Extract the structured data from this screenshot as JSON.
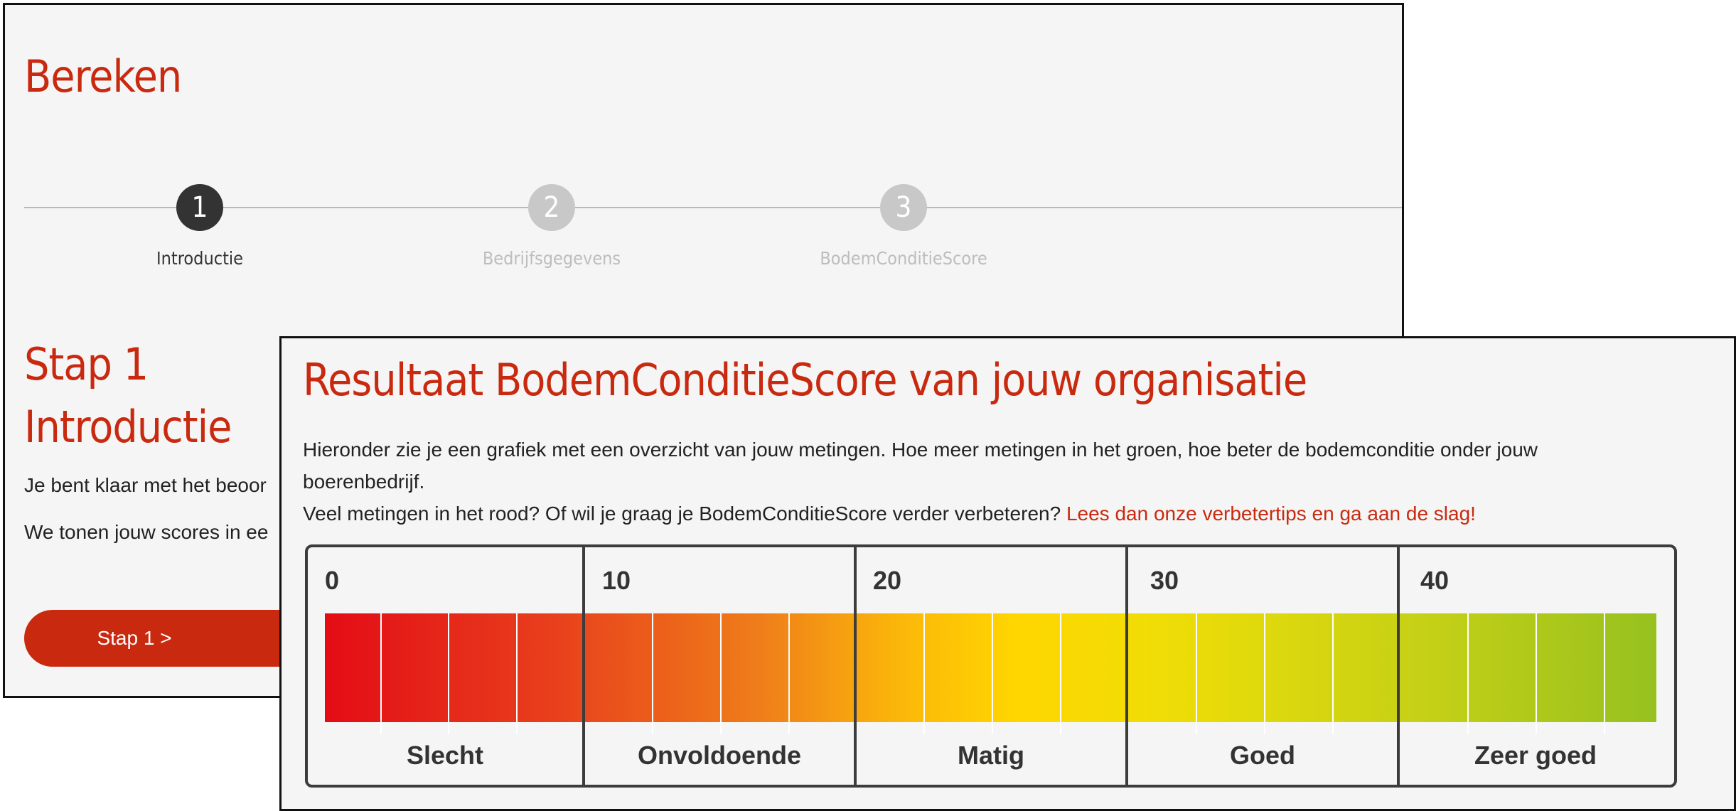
{
  "back_panel": {
    "title": "Bereken",
    "steps": [
      {
        "number": "1",
        "label": "Introductie",
        "state": "active"
      },
      {
        "number": "2",
        "label": "Bedrijfsgegevens",
        "state": "inactive"
      },
      {
        "number": "3",
        "label": "BodemConditieScore",
        "state": "inactive"
      }
    ],
    "heading_line1": "Stap 1",
    "heading_line2": "Introductie",
    "text_line1": "Je bent klaar met het beoor",
    "text_line2": "We tonen jouw scores in ee",
    "button_label": "Stap 1 >"
  },
  "front_panel": {
    "title": "Resultaat BodemConditieScore van jouw organisatie",
    "text_line1": "Hieronder zie je een grafiek met een overzicht van jouw metingen. Hoe meer metingen in het groen, hoe beter de bodemconditie onder jouw",
    "text_line2": "boerenbedrijf.",
    "text_line3": "Veel metingen in het rood? Of wil je graag je BodemConditieScore verder verbeteren?",
    "link_text": "Lees dan onze verbetertips en ga aan de slag!",
    "scale": {
      "numbers": [
        "0",
        "10",
        "20",
        "30",
        "40"
      ],
      "categories": [
        "Slecht",
        "Onvoldoende",
        "Matig",
        "Goed",
        "Zeer goed"
      ]
    }
  },
  "colors": {
    "brand_red": "#c92a0f",
    "step_active": "#333333",
    "step_inactive": "#c8c8c8",
    "scale_low": "#e30c16",
    "scale_mid": "#ffd600",
    "scale_high": "#97c11f"
  }
}
